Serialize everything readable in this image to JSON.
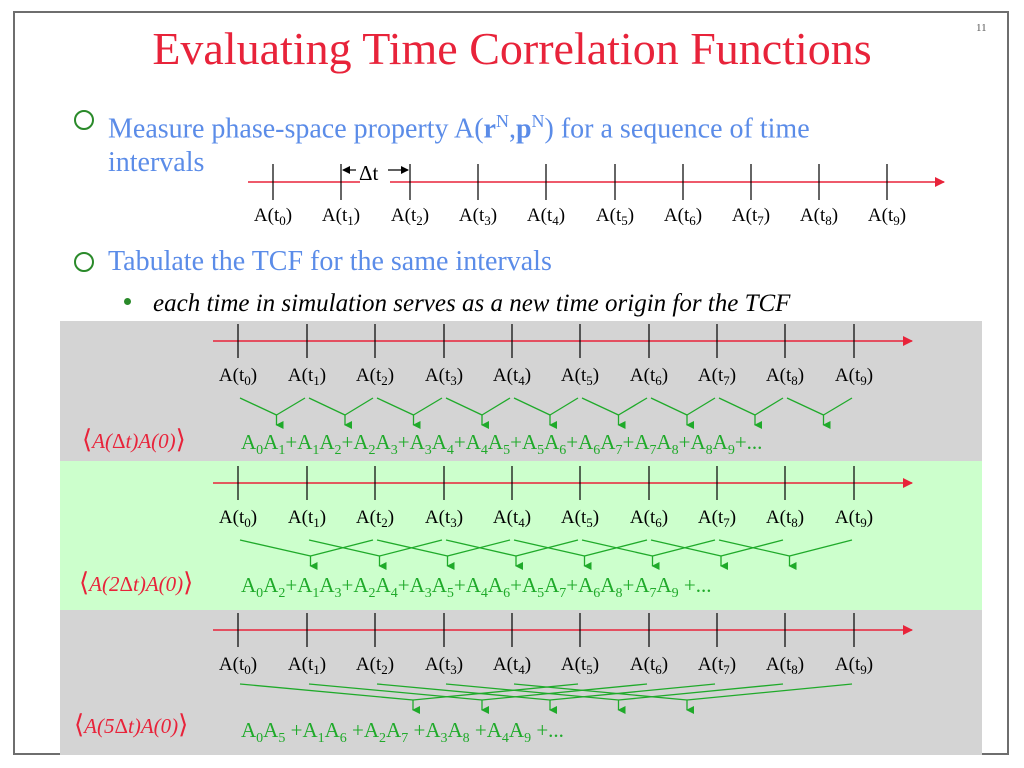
{
  "slide": {
    "number": "11",
    "title": "Evaluating Time Correlation Functions"
  },
  "bullets": {
    "b1_pre": "Measure phase-space property A(",
    "b1_r": "r",
    "b1_N1": "N",
    "b1_comma": ",",
    "b1_p": "p",
    "b1_N2": "N",
    "b1_post": ") for a sequence of time",
    "b1_line2": "intervals",
    "b2": "Tabulate the TCF for the same intervals",
    "sub1": "each time in simulation serves as a new time origin for the TCF"
  },
  "timeline": {
    "dt_label": "Δt",
    "labels": [
      {
        "base": "A(t",
        "sub": "0",
        "end": ")"
      },
      {
        "base": "A(t",
        "sub": "1",
        "end": ")"
      },
      {
        "base": "A(t",
        "sub": "2",
        "end": ")"
      },
      {
        "base": "A(t",
        "sub": "3",
        "end": ")"
      },
      {
        "base": "A(t",
        "sub": "4",
        "end": ")"
      },
      {
        "base": "A(t",
        "sub": "5",
        "end": ")"
      },
      {
        "base": "A(t",
        "sub": "6",
        "end": ")"
      },
      {
        "base": "A(t",
        "sub": "7",
        "end": ")"
      },
      {
        "base": "A(t",
        "sub": "8",
        "end": ")"
      },
      {
        "base": "A(t",
        "sub": "9",
        "end": ")"
      }
    ]
  },
  "panels": [
    {
      "corr": {
        "pre": "A(",
        "mid": "Δ",
        "t": "t",
        "post": ")A(0)"
      },
      "sum": "A0A1+A1A2+A2A3+A3A4+A4A5+A5A6+A6A7+A7A8+A8A9+...",
      "lag": 1
    },
    {
      "corr": {
        "pre": "A(2",
        "mid": "Δ",
        "t": "t",
        "post": ")A(0)"
      },
      "sum": "A0A2+A1A3+A2A4+A3A5+A4A6+A5A7+A6A8+A7A9 +...",
      "lag": 2
    },
    {
      "corr": {
        "pre": "A(5",
        "mid": "Δ",
        "t": "t",
        "post": ")A(0)"
      },
      "sum": "A0A5 +A1A6 +A2A7 +A3A8 +A4A9 +...",
      "lag": 5
    }
  ],
  "colors": {
    "title": "#e8233a",
    "bullet": "#5b8ce8",
    "ring": "#2a8a2a",
    "axis": "#e8233a",
    "connector": "#1faa2a",
    "gray_band": "#d4d4d4",
    "green_band": "#ccffcc"
  }
}
